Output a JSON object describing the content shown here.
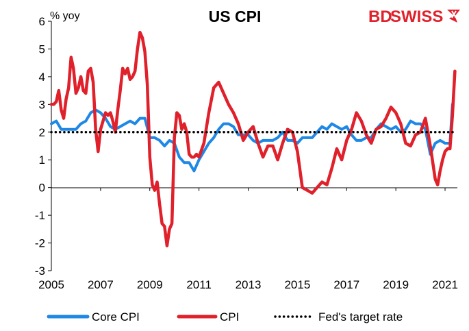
{
  "brand": {
    "logo_part1": "BD",
    "logo_part2": "SWISS",
    "logo_colors": [
      "#e0202a",
      "#e0202a"
    ]
  },
  "chart_data": {
    "type": "line",
    "title": "US CPI",
    "ylabel_unit": "% yoy",
    "ylim": [
      -3,
      6
    ],
    "yticks": [
      "6",
      "5",
      "4",
      "3",
      "2",
      "1",
      "0",
      "-1",
      "-2",
      "-3"
    ],
    "xlim": [
      2005,
      2021.5
    ],
    "xticks": [
      "2005",
      "2007",
      "2009",
      "2011",
      "2013",
      "2015",
      "2017",
      "2019",
      "2021"
    ],
    "grid": false,
    "legend_position": "bottom",
    "series": [
      {
        "name": "Core CPI",
        "color": "#1e88e5",
        "points": [
          [
            2005.0,
            2.3
          ],
          [
            2005.2,
            2.4
          ],
          [
            2005.4,
            2.1
          ],
          [
            2005.6,
            2.1
          ],
          [
            2005.8,
            2.1
          ],
          [
            2006.0,
            2.1
          ],
          [
            2006.2,
            2.3
          ],
          [
            2006.4,
            2.4
          ],
          [
            2006.6,
            2.7
          ],
          [
            2006.8,
            2.8
          ],
          [
            2007.0,
            2.7
          ],
          [
            2007.2,
            2.5
          ],
          [
            2007.4,
            2.2
          ],
          [
            2007.6,
            2.1
          ],
          [
            2007.8,
            2.2
          ],
          [
            2008.0,
            2.3
          ],
          [
            2008.2,
            2.4
          ],
          [
            2008.4,
            2.3
          ],
          [
            2008.6,
            2.5
          ],
          [
            2008.8,
            2.5
          ],
          [
            2009.0,
            1.8
          ],
          [
            2009.2,
            1.8
          ],
          [
            2009.4,
            1.7
          ],
          [
            2009.6,
            1.5
          ],
          [
            2009.8,
            1.7
          ],
          [
            2010.0,
            1.6
          ],
          [
            2010.2,
            1.1
          ],
          [
            2010.4,
            0.9
          ],
          [
            2010.6,
            0.9
          ],
          [
            2010.8,
            0.6
          ],
          [
            2011.0,
            1.0
          ],
          [
            2011.2,
            1.3
          ],
          [
            2011.4,
            1.6
          ],
          [
            2011.6,
            1.8
          ],
          [
            2011.8,
            2.1
          ],
          [
            2012.0,
            2.3
          ],
          [
            2012.2,
            2.3
          ],
          [
            2012.4,
            2.2
          ],
          [
            2012.6,
            1.9
          ],
          [
            2012.8,
            1.9
          ],
          [
            2013.0,
            1.9
          ],
          [
            2013.2,
            1.7
          ],
          [
            2013.4,
            1.6
          ],
          [
            2013.6,
            1.7
          ],
          [
            2013.8,
            1.7
          ],
          [
            2014.0,
            1.7
          ],
          [
            2014.2,
            1.8
          ],
          [
            2014.4,
            2.0
          ],
          [
            2014.6,
            1.7
          ],
          [
            2014.8,
            1.7
          ],
          [
            2015.0,
            1.6
          ],
          [
            2015.2,
            1.8
          ],
          [
            2015.4,
            1.8
          ],
          [
            2015.6,
            1.8
          ],
          [
            2015.8,
            2.0
          ],
          [
            2016.0,
            2.2
          ],
          [
            2016.2,
            2.1
          ],
          [
            2016.4,
            2.3
          ],
          [
            2016.6,
            2.2
          ],
          [
            2016.8,
            2.1
          ],
          [
            2017.0,
            2.2
          ],
          [
            2017.2,
            1.9
          ],
          [
            2017.4,
            1.7
          ],
          [
            2017.6,
            1.7
          ],
          [
            2017.8,
            1.8
          ],
          [
            2018.0,
            1.8
          ],
          [
            2018.2,
            2.1
          ],
          [
            2018.4,
            2.3
          ],
          [
            2018.6,
            2.2
          ],
          [
            2018.8,
            2.1
          ],
          [
            2019.0,
            2.2
          ],
          [
            2019.2,
            2.0
          ],
          [
            2019.4,
            2.1
          ],
          [
            2019.6,
            2.4
          ],
          [
            2019.8,
            2.3
          ],
          [
            2020.0,
            2.3
          ],
          [
            2020.2,
            2.1
          ],
          [
            2020.4,
            1.2
          ],
          [
            2020.6,
            1.6
          ],
          [
            2020.8,
            1.7
          ],
          [
            2021.0,
            1.6
          ],
          [
            2021.2,
            1.6
          ],
          [
            2021.3,
            3.0
          ]
        ]
      },
      {
        "name": "CPI",
        "color": "#e0202a",
        "points": [
          [
            2005.0,
            3.0
          ],
          [
            2005.1,
            3.0
          ],
          [
            2005.2,
            3.1
          ],
          [
            2005.3,
            3.5
          ],
          [
            2005.4,
            2.8
          ],
          [
            2005.5,
            2.5
          ],
          [
            2005.6,
            3.2
          ],
          [
            2005.7,
            3.6
          ],
          [
            2005.8,
            4.7
          ],
          [
            2005.9,
            4.3
          ],
          [
            2006.0,
            3.4
          ],
          [
            2006.1,
            3.6
          ],
          [
            2006.2,
            4.0
          ],
          [
            2006.3,
            3.5
          ],
          [
            2006.4,
            3.4
          ],
          [
            2006.5,
            4.2
          ],
          [
            2006.6,
            4.3
          ],
          [
            2006.7,
            3.8
          ],
          [
            2006.8,
            2.1
          ],
          [
            2006.9,
            1.3
          ],
          [
            2007.0,
            2.1
          ],
          [
            2007.1,
            2.4
          ],
          [
            2007.2,
            2.7
          ],
          [
            2007.3,
            2.6
          ],
          [
            2007.4,
            2.7
          ],
          [
            2007.5,
            2.4
          ],
          [
            2007.6,
            2.0
          ],
          [
            2007.7,
            2.8
          ],
          [
            2007.8,
            3.5
          ],
          [
            2007.9,
            4.3
          ],
          [
            2008.0,
            4.1
          ],
          [
            2008.1,
            4.3
          ],
          [
            2008.2,
            3.9
          ],
          [
            2008.3,
            4.0
          ],
          [
            2008.4,
            4.2
          ],
          [
            2008.5,
            5.0
          ],
          [
            2008.6,
            5.6
          ],
          [
            2008.7,
            5.4
          ],
          [
            2008.8,
            4.9
          ],
          [
            2008.9,
            3.7
          ],
          [
            2009.0,
            1.1
          ],
          [
            2009.1,
            0.1
          ],
          [
            2009.2,
            -0.1
          ],
          [
            2009.3,
            0.2
          ],
          [
            2009.4,
            -0.6
          ],
          [
            2009.5,
            -1.3
          ],
          [
            2009.6,
            -1.4
          ],
          [
            2009.7,
            -2.1
          ],
          [
            2009.8,
            -1.5
          ],
          [
            2009.9,
            -1.3
          ],
          [
            2010.0,
            1.8
          ],
          [
            2010.1,
            2.7
          ],
          [
            2010.2,
            2.6
          ],
          [
            2010.3,
            2.1
          ],
          [
            2010.4,
            2.3
          ],
          [
            2010.5,
            2.0
          ],
          [
            2010.6,
            1.2
          ],
          [
            2010.7,
            1.1
          ],
          [
            2010.8,
            1.1
          ],
          [
            2010.9,
            1.2
          ],
          [
            2011.0,
            1.1
          ],
          [
            2011.2,
            1.6
          ],
          [
            2011.4,
            2.7
          ],
          [
            2011.6,
            3.6
          ],
          [
            2011.8,
            3.8
          ],
          [
            2012.0,
            3.4
          ],
          [
            2012.2,
            3.0
          ],
          [
            2012.4,
            2.7
          ],
          [
            2012.6,
            2.3
          ],
          [
            2012.8,
            1.7
          ],
          [
            2013.0,
            2.0
          ],
          [
            2013.2,
            2.2
          ],
          [
            2013.4,
            1.6
          ],
          [
            2013.6,
            1.1
          ],
          [
            2013.8,
            1.5
          ],
          [
            2014.0,
            1.5
          ],
          [
            2014.2,
            1.0
          ],
          [
            2014.4,
            1.6
          ],
          [
            2014.6,
            2.1
          ],
          [
            2014.8,
            2.0
          ],
          [
            2015.0,
            1.3
          ],
          [
            2015.2,
            0.0
          ],
          [
            2015.4,
            -0.1
          ],
          [
            2015.6,
            -0.2
          ],
          [
            2015.8,
            0.0
          ],
          [
            2016.0,
            0.2
          ],
          [
            2016.2,
            0.1
          ],
          [
            2016.4,
            0.7
          ],
          [
            2016.6,
            1.4
          ],
          [
            2016.8,
            1.0
          ],
          [
            2017.0,
            1.7
          ],
          [
            2017.2,
            2.1
          ],
          [
            2017.4,
            2.7
          ],
          [
            2017.6,
            2.4
          ],
          [
            2017.8,
            1.9
          ],
          [
            2018.0,
            1.6
          ],
          [
            2018.2,
            2.1
          ],
          [
            2018.4,
            2.2
          ],
          [
            2018.6,
            2.5
          ],
          [
            2018.8,
            2.9
          ],
          [
            2019.0,
            2.7
          ],
          [
            2019.2,
            2.3
          ],
          [
            2019.4,
            1.6
          ],
          [
            2019.6,
            1.5
          ],
          [
            2019.8,
            1.9
          ],
          [
            2020.0,
            2.0
          ],
          [
            2020.2,
            2.5
          ],
          [
            2020.4,
            1.5
          ],
          [
            2020.6,
            0.3
          ],
          [
            2020.7,
            0.1
          ],
          [
            2020.8,
            0.6
          ],
          [
            2020.9,
            1.0
          ],
          [
            2021.0,
            1.3
          ],
          [
            2021.1,
            1.4
          ],
          [
            2021.2,
            1.4
          ],
          [
            2021.3,
            2.6
          ],
          [
            2021.4,
            4.2
          ]
        ]
      },
      {
        "name": "Fed's target rate",
        "color": "#000000",
        "style": "dotted",
        "points": [
          [
            2005.0,
            2.0
          ],
          [
            2021.4,
            2.0
          ]
        ]
      }
    ]
  }
}
